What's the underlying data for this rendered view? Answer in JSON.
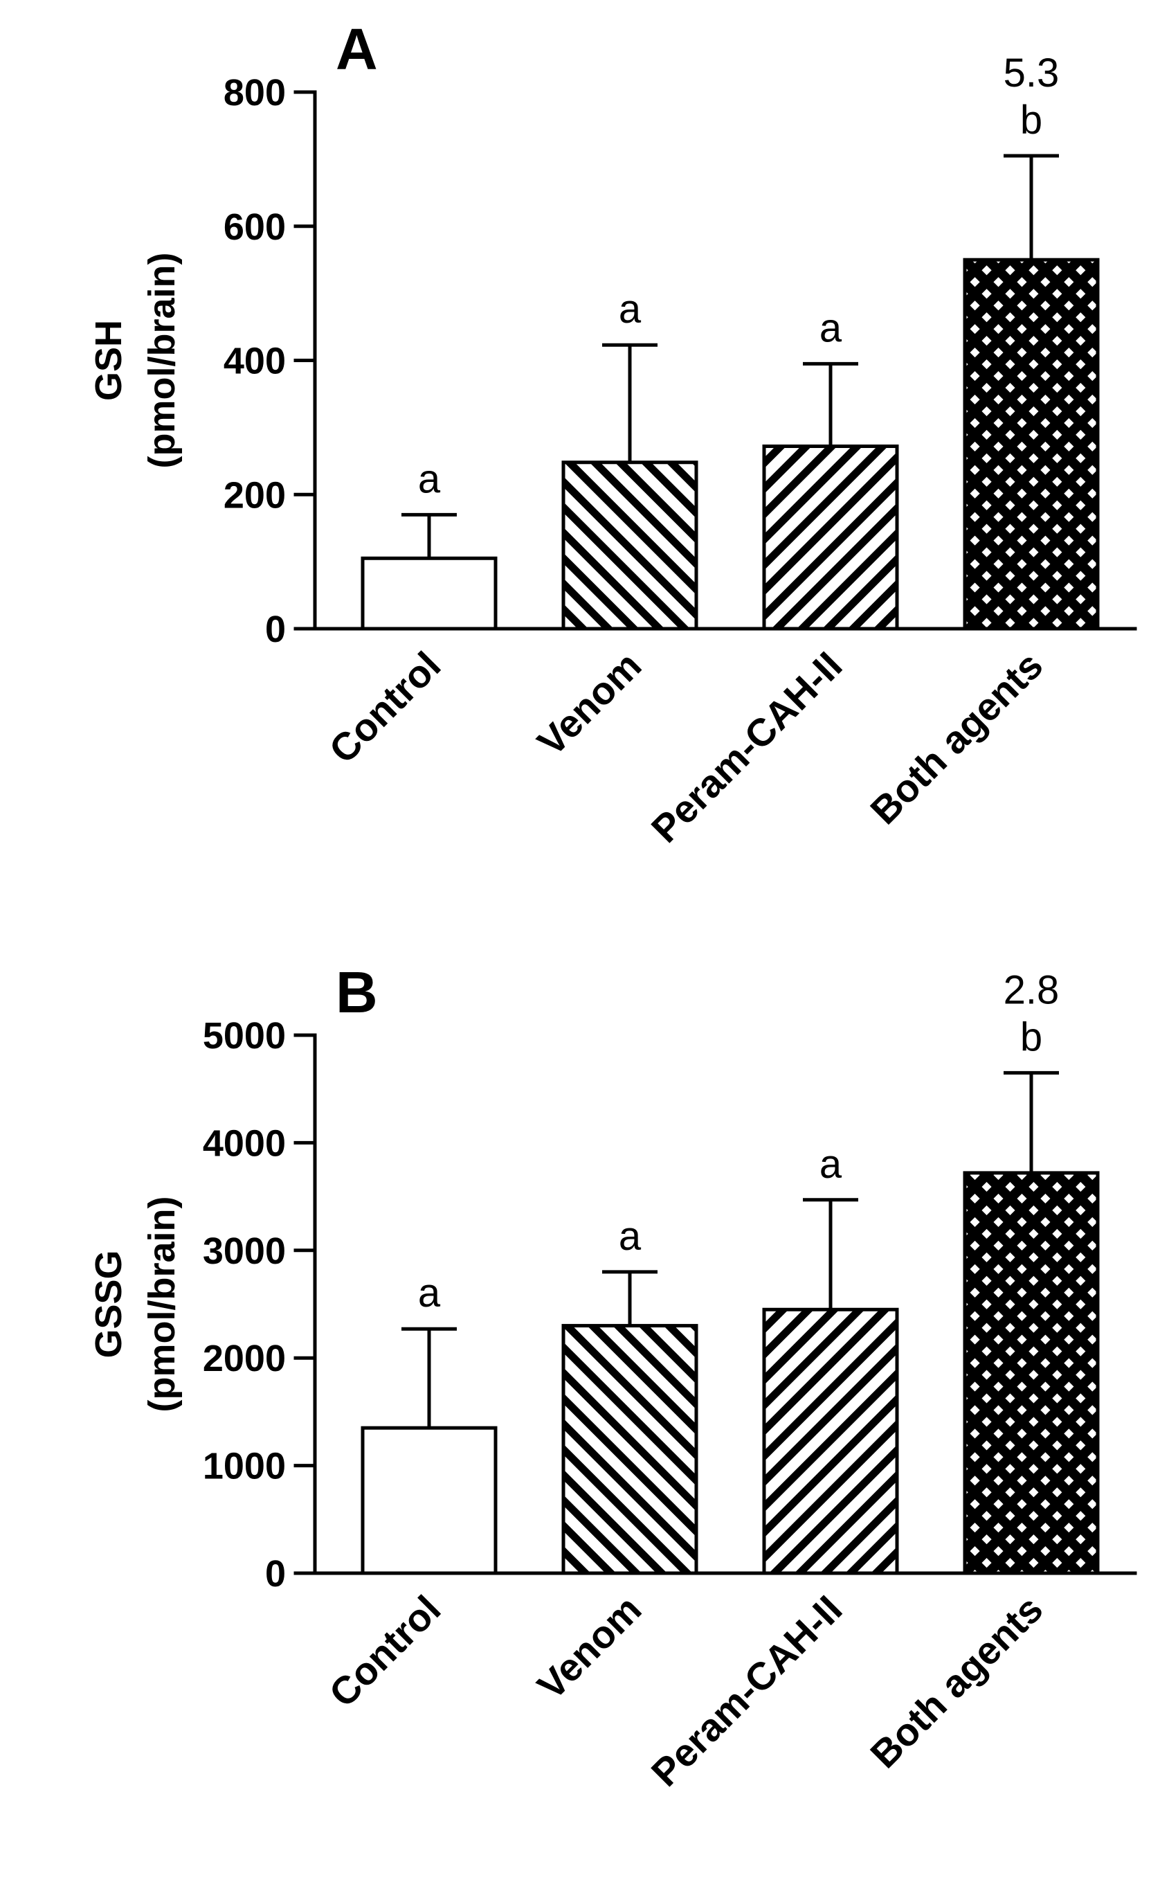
{
  "chart_data": [
    {
      "type": "bar",
      "panel_label": "A",
      "categories": [
        "Control",
        "Venom",
        "Peram-CAH-II",
        "Both agents"
      ],
      "values": [
        105,
        248,
        272,
        550
      ],
      "errors": [
        65,
        175,
        123,
        155
      ],
      "letters": [
        "a",
        "a",
        "a",
        "b"
      ],
      "fold_annotation": "5.3",
      "patterns": [
        "none",
        "diag-left",
        "diag-right",
        "crosshatch"
      ],
      "ylabel": [
        "GSH",
        "(pmol/brain)"
      ],
      "ylim": [
        0,
        800
      ],
      "yticks": [
        0,
        200,
        400,
        600,
        800
      ]
    },
    {
      "type": "bar",
      "panel_label": "B",
      "categories": [
        "Control",
        "Venom",
        "Peram-CAH-II",
        "Both agents"
      ],
      "values": [
        1350,
        2300,
        2450,
        3720
      ],
      "errors": [
        920,
        500,
        1020,
        930
      ],
      "letters": [
        "a",
        "a",
        "a",
        "b"
      ],
      "fold_annotation": "2.8",
      "patterns": [
        "none",
        "diag-left",
        "diag-right",
        "crosshatch"
      ],
      "ylabel": [
        "GSSG",
        "(pmol/brain)"
      ],
      "ylim": [
        0,
        5000
      ],
      "yticks": [
        0,
        1000,
        2000,
        3000,
        4000,
        5000
      ]
    }
  ]
}
